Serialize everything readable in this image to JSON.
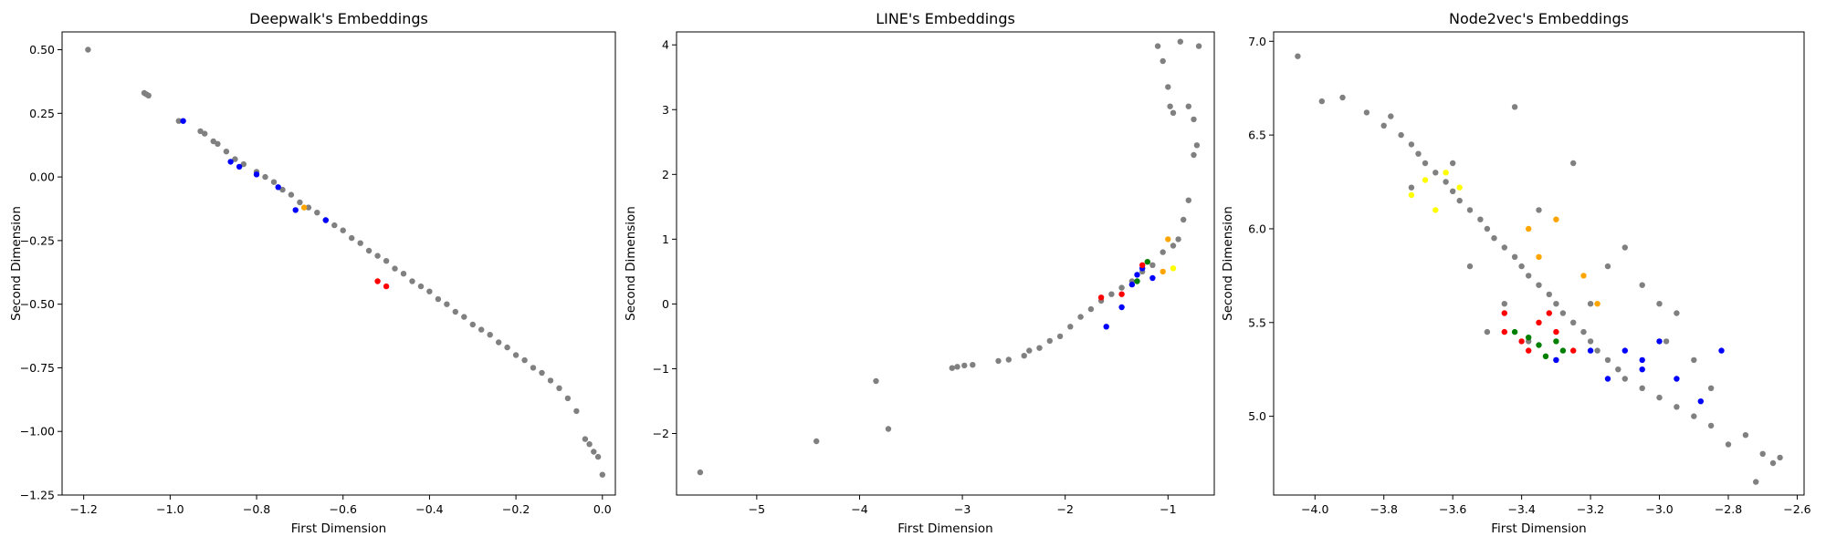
{
  "chart_data": [
    {
      "type": "scatter",
      "title": "Deepwalk's Embeddings",
      "xlabel": "First Dimension",
      "ylabel": "Second Dimension",
      "xlim": [
        -1.25,
        0.03
      ],
      "ylim": [
        -1.25,
        0.57
      ],
      "xticks": [
        -1.2,
        -1.0,
        -0.8,
        -0.6,
        -0.4,
        -0.2,
        0.0
      ],
      "xticklabels": [
        "−1.2",
        "−1.0",
        "−0.8",
        "−0.6",
        "−0.4",
        "−0.2",
        "0.0"
      ],
      "yticks": [
        0.5,
        0.25,
        0.0,
        -0.25,
        -0.5,
        -0.75,
        -1.0,
        -1.25
      ],
      "yticklabels": [
        "0.50",
        "0.25",
        "0.00",
        "−0.25",
        "−0.50",
        "−0.75",
        "−1.00",
        "−1.25"
      ],
      "grid": false,
      "series": [
        {
          "color": "#808080",
          "points": [
            [
              -1.19,
              0.5
            ],
            [
              -1.06,
              0.33
            ],
            [
              -1.055,
              0.325
            ],
            [
              -1.05,
              0.32
            ],
            [
              -0.98,
              0.22
            ],
            [
              -0.93,
              0.18
            ],
            [
              -0.92,
              0.17
            ],
            [
              -0.9,
              0.14
            ],
            [
              -0.89,
              0.13
            ],
            [
              -0.87,
              0.1
            ],
            [
              -0.85,
              0.07
            ],
            [
              -0.83,
              0.05
            ],
            [
              -0.8,
              0.02
            ],
            [
              -0.78,
              0.0
            ],
            [
              -0.76,
              -0.02
            ],
            [
              -0.74,
              -0.05
            ],
            [
              -0.72,
              -0.07
            ],
            [
              -0.7,
              -0.1
            ],
            [
              -0.68,
              -0.12
            ],
            [
              -0.66,
              -0.14
            ],
            [
              -0.64,
              -0.17
            ],
            [
              -0.62,
              -0.19
            ],
            [
              -0.6,
              -0.21
            ],
            [
              -0.58,
              -0.24
            ],
            [
              -0.56,
              -0.26
            ],
            [
              -0.54,
              -0.29
            ],
            [
              -0.52,
              -0.31
            ],
            [
              -0.5,
              -0.33
            ],
            [
              -0.48,
              -0.36
            ],
            [
              -0.46,
              -0.38
            ],
            [
              -0.44,
              -0.41
            ],
            [
              -0.42,
              -0.43
            ],
            [
              -0.4,
              -0.45
            ],
            [
              -0.38,
              -0.48
            ],
            [
              -0.36,
              -0.5
            ],
            [
              -0.34,
              -0.53
            ],
            [
              -0.32,
              -0.55
            ],
            [
              -0.3,
              -0.58
            ],
            [
              -0.28,
              -0.6
            ],
            [
              -0.26,
              -0.62
            ],
            [
              -0.24,
              -0.65
            ],
            [
              -0.22,
              -0.67
            ],
            [
              -0.2,
              -0.7
            ],
            [
              -0.18,
              -0.72
            ],
            [
              -0.16,
              -0.75
            ],
            [
              -0.14,
              -0.77
            ],
            [
              -0.12,
              -0.8
            ],
            [
              -0.1,
              -0.83
            ],
            [
              -0.08,
              -0.87
            ],
            [
              -0.06,
              -0.92
            ],
            [
              -0.04,
              -1.03
            ],
            [
              -0.03,
              -1.05
            ],
            [
              -0.02,
              -1.08
            ],
            [
              -0.01,
              -1.1
            ],
            [
              0.0,
              -1.17
            ]
          ]
        },
        {
          "color": "#0000ff",
          "points": [
            [
              -0.97,
              0.22
            ],
            [
              -0.86,
              0.06
            ],
            [
              -0.84,
              0.04
            ],
            [
              -0.8,
              0.01
            ],
            [
              -0.75,
              -0.04
            ],
            [
              -0.71,
              -0.13
            ],
            [
              -0.64,
              -0.17
            ]
          ]
        },
        {
          "color": "#ff0000",
          "points": [
            [
              -0.52,
              -0.41
            ],
            [
              -0.5,
              -0.43
            ]
          ]
        },
        {
          "color": "#ffa500",
          "points": [
            [
              -0.69,
              -0.12
            ]
          ]
        }
      ]
    },
    {
      "type": "scatter",
      "title": "LINE's Embeddings",
      "xlabel": "First Dimension",
      "ylabel": "Second Dimension",
      "xlim": [
        -5.78,
        -0.55
      ],
      "ylim": [
        -2.95,
        4.2
      ],
      "xticks": [
        -5,
        -4,
        -3,
        -2,
        -1
      ],
      "xticklabels": [
        "−5",
        "−4",
        "−3",
        "−2",
        "−1"
      ],
      "yticks": [
        4,
        3,
        2,
        1,
        0,
        -1,
        -2
      ],
      "yticklabels": [
        "4",
        "3",
        "2",
        "1",
        "0",
        "−1",
        "−2"
      ],
      "grid": false,
      "series": [
        {
          "color": "#808080",
          "points": [
            [
              -5.55,
              -2.6
            ],
            [
              -4.42,
              -2.12
            ],
            [
              -3.84,
              -1.19
            ],
            [
              -3.72,
              -1.93
            ],
            [
              -3.1,
              -0.99
            ],
            [
              -3.05,
              -0.97
            ],
            [
              -2.98,
              -0.95
            ],
            [
              -2.9,
              -0.94
            ],
            [
              -2.65,
              -0.88
            ],
            [
              -2.55,
              -0.86
            ],
            [
              -2.4,
              -0.8
            ],
            [
              -2.35,
              -0.72
            ],
            [
              -2.25,
              -0.68
            ],
            [
              -2.15,
              -0.57
            ],
            [
              -2.05,
              -0.5
            ],
            [
              -1.95,
              -0.35
            ],
            [
              -1.85,
              -0.2
            ],
            [
              -1.75,
              -0.08
            ],
            [
              -1.65,
              0.05
            ],
            [
              -1.55,
              0.15
            ],
            [
              -1.45,
              0.25
            ],
            [
              -1.35,
              0.35
            ],
            [
              -1.25,
              0.5
            ],
            [
              -1.15,
              0.6
            ],
            [
              -1.05,
              0.8
            ],
            [
              -0.95,
              0.9
            ],
            [
              -0.9,
              1.0
            ],
            [
              -0.85,
              1.3
            ],
            [
              -0.8,
              1.6
            ],
            [
              -1.1,
              3.98
            ],
            [
              -1.05,
              3.75
            ],
            [
              -1.0,
              3.35
            ],
            [
              -0.98,
              3.05
            ],
            [
              -0.95,
              2.95
            ],
            [
              -0.88,
              4.05
            ],
            [
              -0.8,
              3.05
            ],
            [
              -0.75,
              2.85
            ],
            [
              -0.72,
              2.45
            ],
            [
              -0.7,
              3.98
            ],
            [
              -0.75,
              2.3
            ]
          ]
        },
        {
          "color": "#0000ff",
          "points": [
            [
              -1.6,
              -0.35
            ],
            [
              -1.45,
              -0.05
            ],
            [
              -1.35,
              0.3
            ],
            [
              -1.3,
              0.45
            ],
            [
              -1.15,
              0.4
            ],
            [
              -1.25,
              0.55
            ]
          ]
        },
        {
          "color": "#ff0000",
          "points": [
            [
              -1.65,
              0.1
            ],
            [
              -1.45,
              0.15
            ],
            [
              -1.25,
              0.6
            ]
          ]
        },
        {
          "color": "#008000",
          "points": [
            [
              -1.3,
              0.35
            ],
            [
              -1.2,
              0.65
            ]
          ]
        },
        {
          "color": "#ffa500",
          "points": [
            [
              -1.0,
              1.0
            ],
            [
              -1.05,
              0.5
            ]
          ]
        },
        {
          "color": "#ffff00",
          "points": [
            [
              -0.95,
              0.55
            ]
          ]
        }
      ]
    },
    {
      "type": "scatter",
      "title": "Node2vec's Embeddings",
      "xlabel": "First Dimension",
      "ylabel": "Second Dimension",
      "xlim": [
        -4.12,
        -2.58
      ],
      "ylim": [
        4.58,
        7.05
      ],
      "xticks": [
        -4.0,
        -3.8,
        -3.6,
        -3.4,
        -3.2,
        -3.0,
        -2.8,
        -2.6
      ],
      "xticklabels": [
        "−4.0",
        "−3.8",
        "−3.6",
        "−3.4",
        "−3.2",
        "−3.0",
        "−2.8",
        "−2.6"
      ],
      "yticks": [
        7.0,
        6.5,
        6.0,
        5.5,
        5.0
      ],
      "yticklabels": [
        "7.0",
        "6.5",
        "6.0",
        "5.5",
        "5.0"
      ],
      "grid": false,
      "series": [
        {
          "color": "#808080",
          "points": [
            [
              -4.05,
              6.92
            ],
            [
              -3.98,
              6.68
            ],
            [
              -3.92,
              6.7
            ],
            [
              -3.85,
              6.62
            ],
            [
              -3.8,
              6.55
            ],
            [
              -3.78,
              6.6
            ],
            [
              -3.75,
              6.5
            ],
            [
              -3.72,
              6.45
            ],
            [
              -3.7,
              6.4
            ],
            [
              -3.68,
              6.35
            ],
            [
              -3.65,
              6.3
            ],
            [
              -3.62,
              6.25
            ],
            [
              -3.6,
              6.2
            ],
            [
              -3.58,
              6.15
            ],
            [
              -3.55,
              6.1
            ],
            [
              -3.52,
              6.05
            ],
            [
              -3.5,
              6.0
            ],
            [
              -3.48,
              5.95
            ],
            [
              -3.45,
              5.9
            ],
            [
              -3.42,
              5.85
            ],
            [
              -3.4,
              5.8
            ],
            [
              -3.38,
              5.75
            ],
            [
              -3.35,
              5.7
            ],
            [
              -3.32,
              5.65
            ],
            [
              -3.3,
              5.6
            ],
            [
              -3.28,
              5.55
            ],
            [
              -3.25,
              5.5
            ],
            [
              -3.22,
              5.45
            ],
            [
              -3.2,
              5.4
            ],
            [
              -3.18,
              5.35
            ],
            [
              -3.15,
              5.3
            ],
            [
              -3.12,
              5.25
            ],
            [
              -3.1,
              5.2
            ],
            [
              -3.05,
              5.15
            ],
            [
              -3.0,
              5.1
            ],
            [
              -2.95,
              5.05
            ],
            [
              -2.9,
              5.0
            ],
            [
              -2.85,
              4.95
            ],
            [
              -2.8,
              4.85
            ],
            [
              -2.75,
              4.9
            ],
            [
              -2.7,
              4.8
            ],
            [
              -2.67,
              4.75
            ],
            [
              -2.65,
              4.78
            ],
            [
              -2.72,
              4.65
            ],
            [
              -3.72,
              6.22
            ],
            [
              -3.6,
              6.35
            ],
            [
              -3.42,
              6.65
            ],
            [
              -3.25,
              6.35
            ],
            [
              -3.35,
              6.1
            ],
            [
              -3.1,
              5.9
            ],
            [
              -3.05,
              5.7
            ],
            [
              -2.95,
              5.55
            ],
            [
              -2.98,
              5.4
            ],
            [
              -3.55,
              5.8
            ],
            [
              -3.45,
              5.6
            ],
            [
              -3.5,
              5.45
            ],
            [
              -3.38,
              5.4
            ],
            [
              -3.3,
              5.3
            ],
            [
              -3.2,
              5.6
            ],
            [
              -3.15,
              5.8
            ],
            [
              -3.0,
              5.6
            ],
            [
              -2.9,
              5.3
            ],
            [
              -2.85,
              5.15
            ]
          ]
        },
        {
          "color": "#0000ff",
          "points": [
            [
              -3.3,
              5.3
            ],
            [
              -3.2,
              5.35
            ],
            [
              -3.15,
              5.2
            ],
            [
              -3.05,
              5.25
            ],
            [
              -3.0,
              5.4
            ],
            [
              -2.95,
              5.2
            ],
            [
              -2.88,
              5.08
            ],
            [
              -2.82,
              5.35
            ],
            [
              -3.1,
              5.35
            ],
            [
              -3.05,
              5.3
            ]
          ]
        },
        {
          "color": "#ff0000",
          "points": [
            [
              -3.45,
              5.55
            ],
            [
              -3.4,
              5.4
            ],
            [
              -3.35,
              5.5
            ],
            [
              -3.3,
              5.45
            ],
            [
              -3.25,
              5.35
            ],
            [
              -3.38,
              5.35
            ],
            [
              -3.45,
              5.45
            ],
            [
              -3.32,
              5.55
            ]
          ]
        },
        {
          "color": "#008000",
          "points": [
            [
              -3.42,
              5.45
            ],
            [
              -3.38,
              5.42
            ],
            [
              -3.35,
              5.38
            ],
            [
              -3.3,
              5.4
            ],
            [
              -3.28,
              5.35
            ],
            [
              -3.33,
              5.32
            ]
          ]
        },
        {
          "color": "#ffff00",
          "points": [
            [
              -3.72,
              6.18
            ],
            [
              -3.68,
              6.26
            ],
            [
              -3.62,
              6.3
            ],
            [
              -3.58,
              6.22
            ],
            [
              -3.65,
              6.1
            ]
          ]
        },
        {
          "color": "#ffa500",
          "points": [
            [
              -3.38,
              6.0
            ],
            [
              -3.3,
              6.05
            ],
            [
              -3.22,
              5.75
            ],
            [
              -3.18,
              5.6
            ],
            [
              -3.35,
              5.85
            ]
          ]
        }
      ]
    }
  ]
}
